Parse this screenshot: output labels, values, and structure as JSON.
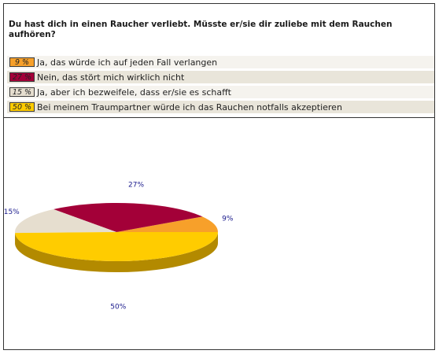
{
  "question": "Du hast dich in einen Raucher verliebt. Müsste er/sie dir zuliebe mit dem Rauchen aufhören?",
  "answers": [
    {
      "percent_label": "9 %",
      "text": "Ja, das würde ich auf jeden Fall verlangen",
      "color": "#f7a02a"
    },
    {
      "percent_label": "27 %",
      "text": "Nein, das stört mich wirklich nicht",
      "color": "#a30038"
    },
    {
      "percent_label": "15 %",
      "text": "Ja, aber ich bezweifele, dass er/sie es schafft",
      "color": "#e6decf"
    },
    {
      "percent_label": "50 %",
      "text": "Bei meinem Traumpartner würde ich das Rauchen notfalls akzeptieren",
      "color": "#ffcc00"
    }
  ],
  "chart_data": {
    "type": "pie",
    "style": "3d",
    "slices": [
      {
        "value": 9,
        "label": "9%",
        "color": "#f7a02a",
        "side_color": "#b86e12"
      },
      {
        "value": 27,
        "label": "27%",
        "color": "#a30038",
        "side_color": "#6e0025"
      },
      {
        "value": 15,
        "label": "15%",
        "color": "#e6decf",
        "side_color": "#a89f8c"
      },
      {
        "value": 50,
        "label": "50%",
        "color": "#ffcc00",
        "side_color": "#b38a00"
      }
    ]
  }
}
